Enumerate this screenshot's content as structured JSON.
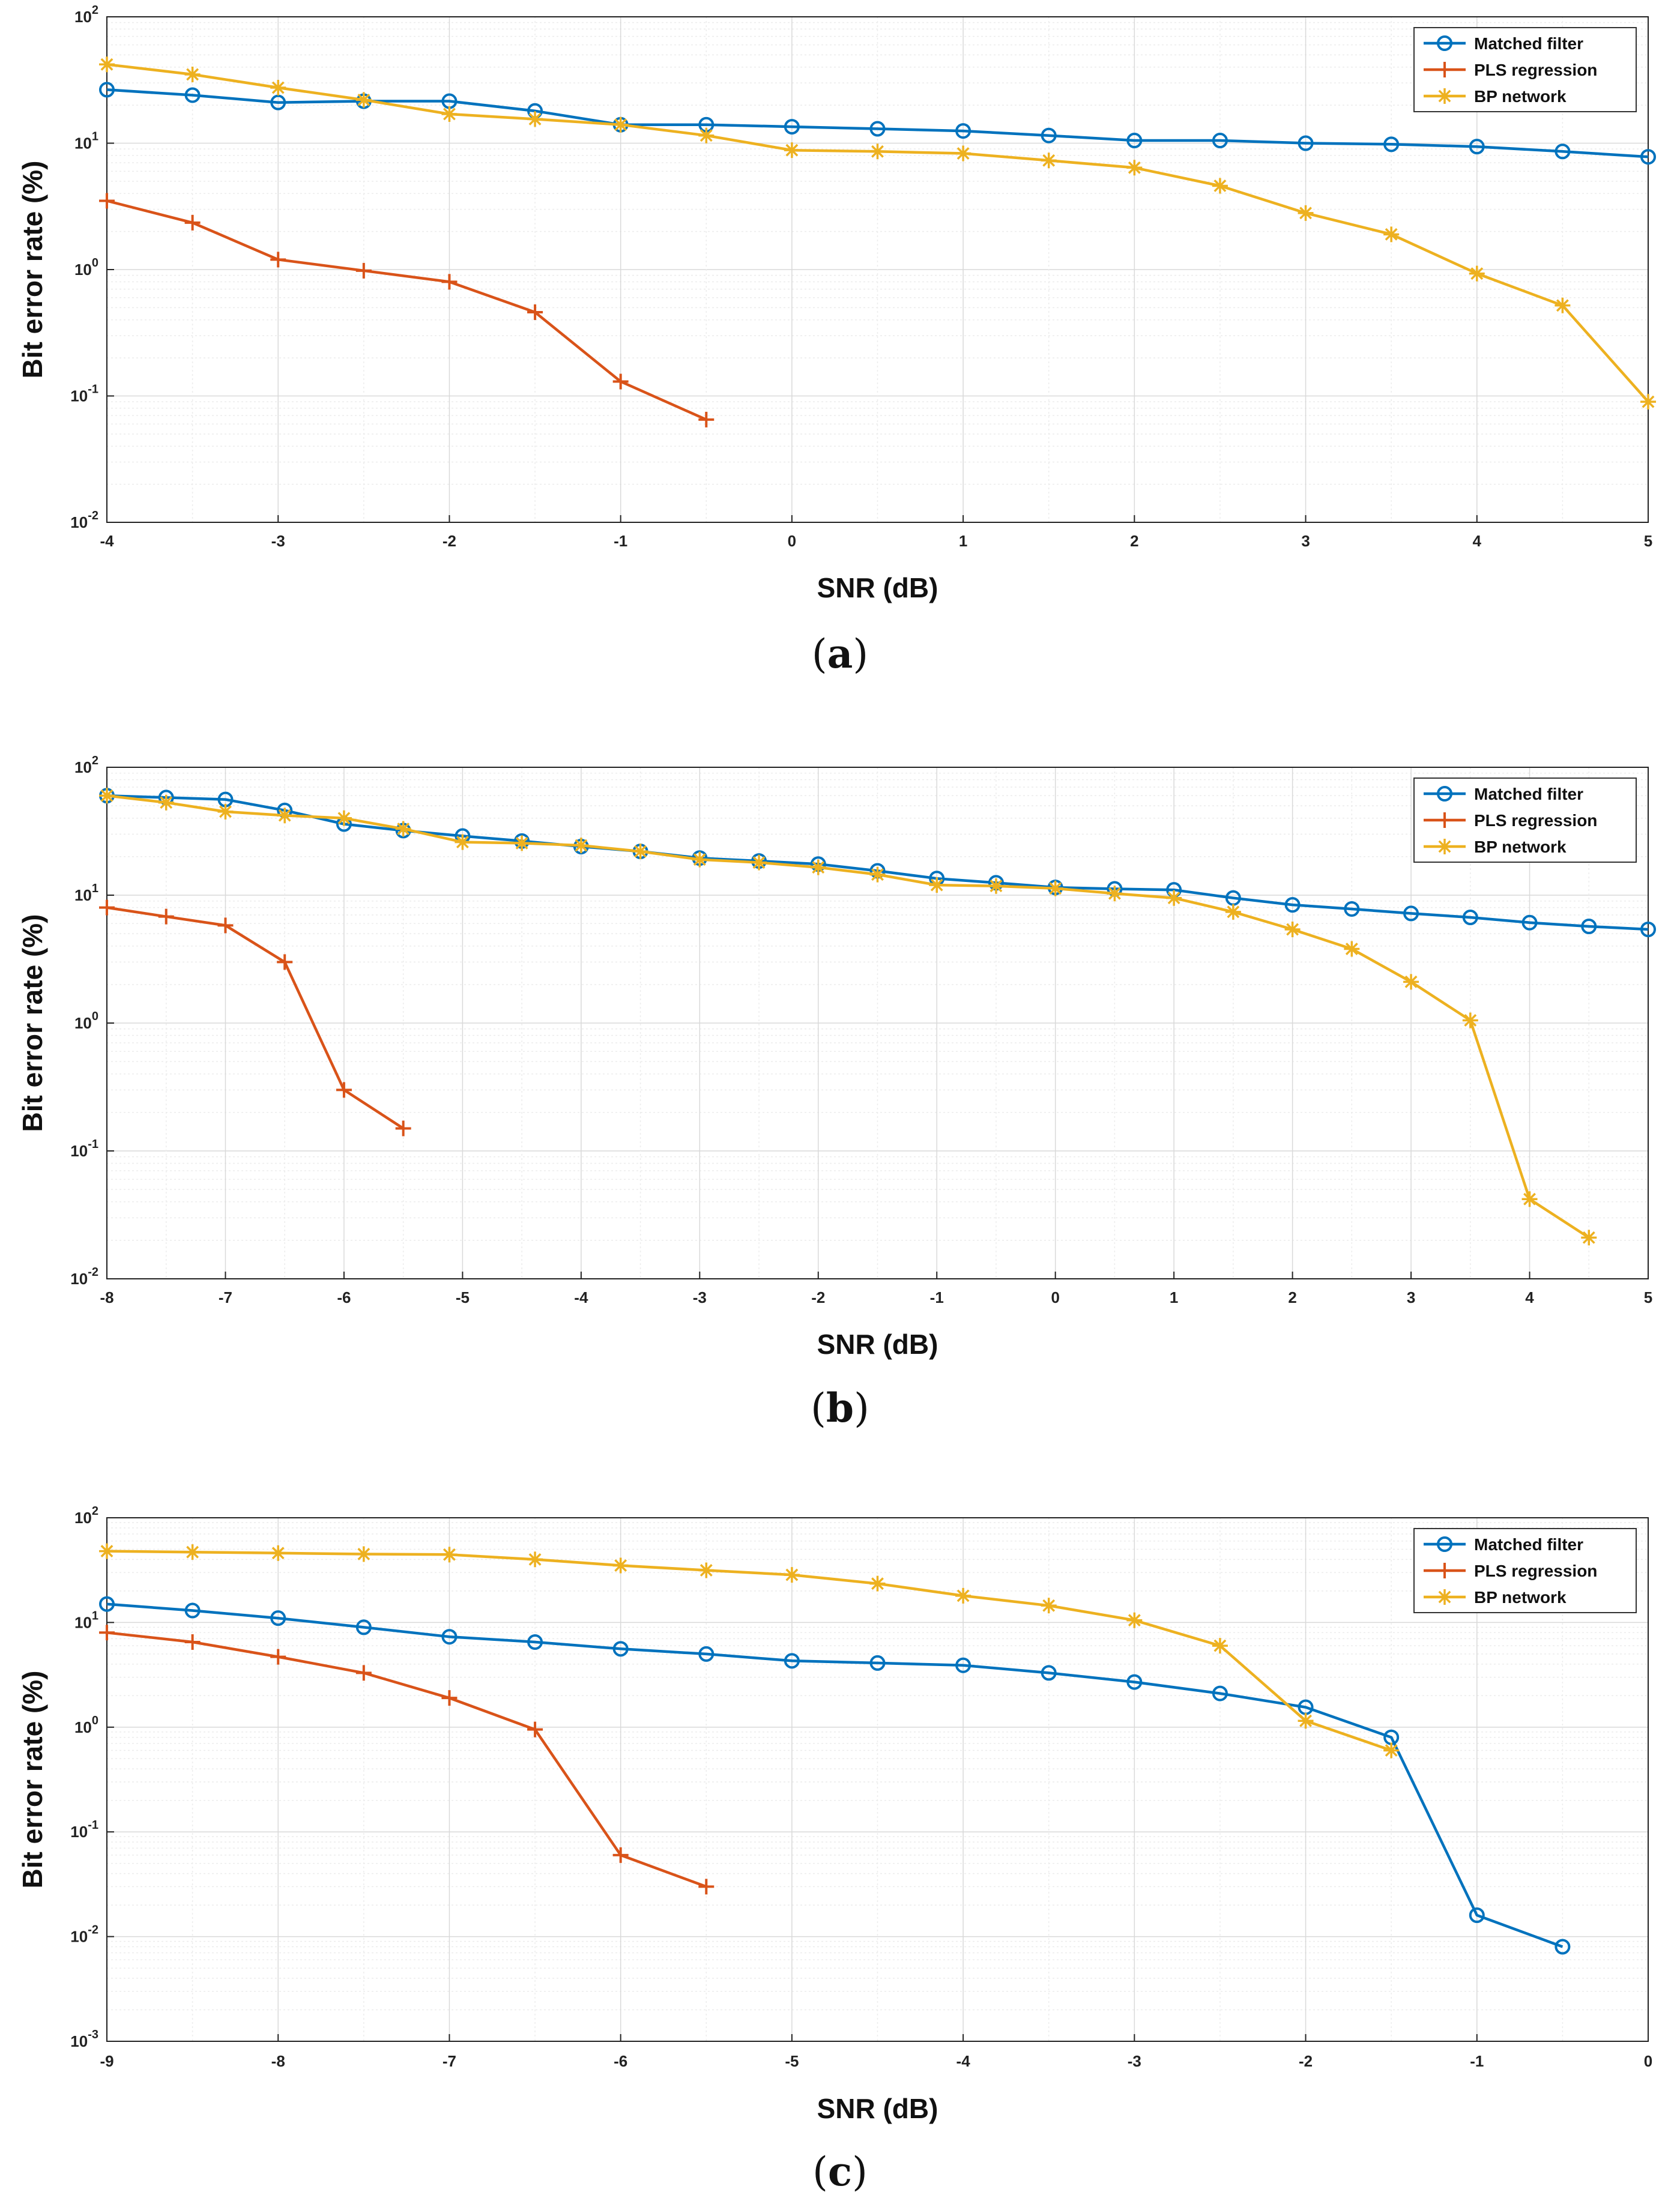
{
  "figure": {
    "colors": {
      "matched": "#0072BD",
      "pls": "#D95319",
      "bp": "#EDB120"
    }
  },
  "chart_data": [
    {
      "type": "line",
      "caption": {
        "open": "(",
        "letter": "a",
        "close": ")"
      },
      "xlabel": "SNR (dB)",
      "ylabel": "Bit error rate (%)",
      "yscale": "log",
      "xlim": [
        -4,
        5
      ],
      "ylim_exp": [
        -2,
        2
      ],
      "grid": true,
      "legend_position": "top-right",
      "xticks": [
        -4,
        -3,
        -2,
        -1,
        0,
        1,
        2,
        3,
        4,
        5
      ],
      "series": [
        {
          "name": "Matched filter",
          "marker": "circle",
          "x": [
            -4,
            -3.5,
            -3,
            -2.5,
            -2,
            -1.5,
            -1,
            -0.5,
            0,
            0.5,
            1,
            1.5,
            2,
            2.5,
            3,
            3.5,
            4,
            4.5,
            5
          ],
          "y": [
            26.5,
            24.0,
            21.0,
            21.5,
            21.5,
            18.0,
            14.0,
            14.0,
            13.5,
            13.0,
            12.5,
            11.5,
            10.5,
            10.5,
            10.0,
            9.8,
            9.4,
            8.6,
            7.8
          ]
        },
        {
          "name": "PLS regression",
          "marker": "plus",
          "x": [
            -4,
            -3.5,
            -3,
            -2.5,
            -2,
            -1.5,
            -1,
            -0.5
          ],
          "y": [
            3.5,
            2.35,
            1.2,
            0.98,
            0.8,
            0.46,
            0.13,
            0.065
          ]
        },
        {
          "name": "BP network",
          "marker": "asterisk",
          "x": [
            -4,
            -3.5,
            -3,
            -2.5,
            -2,
            -1.5,
            -1,
            -0.5,
            0,
            0.5,
            1,
            1.5,
            2,
            2.5,
            3,
            3.5,
            4,
            4.5,
            5
          ],
          "y": [
            42.0,
            35.0,
            27.5,
            22.0,
            17.0,
            15.5,
            14.0,
            11.5,
            8.8,
            8.6,
            8.3,
            7.3,
            6.4,
            4.6,
            2.8,
            1.9,
            0.93,
            0.52,
            0.09
          ]
        }
      ]
    },
    {
      "type": "line",
      "caption": {
        "open": "(",
        "letter": "b",
        "close": ")"
      },
      "xlabel": "SNR (dB)",
      "ylabel": "Bit error rate (%)",
      "yscale": "log",
      "xlim": [
        -8,
        5
      ],
      "ylim_exp": [
        -2,
        2
      ],
      "grid": true,
      "legend_position": "top-right",
      "xticks": [
        -8,
        -7,
        -6,
        -5,
        -4,
        -3,
        -2,
        -1,
        0,
        1,
        2,
        3,
        4,
        5
      ],
      "series": [
        {
          "name": "Matched filter",
          "marker": "circle",
          "x": [
            -8,
            -7.5,
            -7,
            -6.5,
            -6,
            -5.5,
            -5,
            -4.5,
            -4,
            -3.5,
            -3,
            -2.5,
            -2,
            -1.5,
            -1,
            -0.5,
            0,
            0.5,
            1,
            1.5,
            2,
            2.5,
            3,
            3.5,
            4,
            4.5,
            5
          ],
          "y": [
            60.0,
            58.0,
            56.0,
            46.0,
            36.0,
            32.0,
            29.0,
            26.5,
            24.0,
            22.0,
            19.5,
            18.5,
            17.5,
            15.5,
            13.5,
            12.5,
            11.5,
            11.2,
            11.0,
            9.5,
            8.4,
            7.8,
            7.2,
            6.7,
            6.1,
            5.7,
            5.4
          ]
        },
        {
          "name": "PLS regression",
          "marker": "plus",
          "x": [
            -8,
            -7.5,
            -7,
            -6.5,
            -6,
            -5.5
          ],
          "y": [
            8.0,
            6.8,
            5.8,
            3.0,
            0.3,
            0.15
          ]
        },
        {
          "name": "BP network",
          "marker": "asterisk",
          "x": [
            -8,
            -7.5,
            -7,
            -6.5,
            -6,
            -5.5,
            -5,
            -4.5,
            -4,
            -3.5,
            -3,
            -2.5,
            -2,
            -1.5,
            -1,
            -0.5,
            0,
            0.5,
            1,
            1.5,
            2,
            2.5,
            3,
            3.5,
            4,
            4.5
          ],
          "y": [
            60.0,
            53.0,
            45.0,
            42.0,
            40.0,
            33.0,
            26.0,
            25.5,
            24.5,
            22.0,
            19.0,
            18.0,
            16.5,
            14.5,
            12.0,
            11.8,
            11.3,
            10.3,
            9.5,
            7.4,
            5.4,
            3.8,
            2.1,
            1.05,
            0.042,
            0.021
          ]
        }
      ]
    },
    {
      "type": "line",
      "caption": {
        "open": "(",
        "letter": "c",
        "close": ")"
      },
      "xlabel": "SNR (dB)",
      "ylabel": "Bit error rate (%)",
      "yscale": "log",
      "xlim": [
        -9,
        0
      ],
      "ylim_exp": [
        -3,
        2
      ],
      "grid": true,
      "legend_position": "top-right",
      "xticks": [
        -9,
        -8,
        -7,
        -6,
        -5,
        -4,
        -3,
        -2,
        -1,
        0
      ],
      "series": [
        {
          "name": "Matched filter",
          "marker": "circle",
          "x": [
            -9,
            -8.5,
            -8,
            -7.5,
            -7,
            -6.5,
            -6,
            -5.5,
            -5,
            -4.5,
            -4,
            -3.5,
            -3,
            -2.5,
            -2,
            -1.5,
            -1,
            -0.5
          ],
          "y": [
            15.0,
            13.0,
            11.0,
            9.0,
            7.3,
            6.5,
            5.6,
            5.0,
            4.3,
            4.1,
            3.9,
            3.3,
            2.7,
            2.1,
            1.55,
            0.8,
            0.016,
            0.008
          ]
        },
        {
          "name": "PLS regression",
          "marker": "plus",
          "x": [
            -9,
            -8.5,
            -8,
            -7.5,
            -7,
            -6.5,
            -6,
            -5.5
          ],
          "y": [
            8.0,
            6.5,
            4.7,
            3.3,
            1.9,
            0.95,
            0.06,
            0.03
          ]
        },
        {
          "name": "BP network",
          "marker": "asterisk",
          "x": [
            -9,
            -8.5,
            -8,
            -7.5,
            -7,
            -6.5,
            -6,
            -5.5,
            -5,
            -4.5,
            -4,
            -3.5,
            -3,
            -2.5,
            -2,
            -1.5
          ],
          "y": [
            48.0,
            47.0,
            46.0,
            45.0,
            44.5,
            40.0,
            35.0,
            31.5,
            28.5,
            23.5,
            18.0,
            14.5,
            10.5,
            6.0,
            1.15,
            0.6
          ]
        }
      ]
    }
  ]
}
